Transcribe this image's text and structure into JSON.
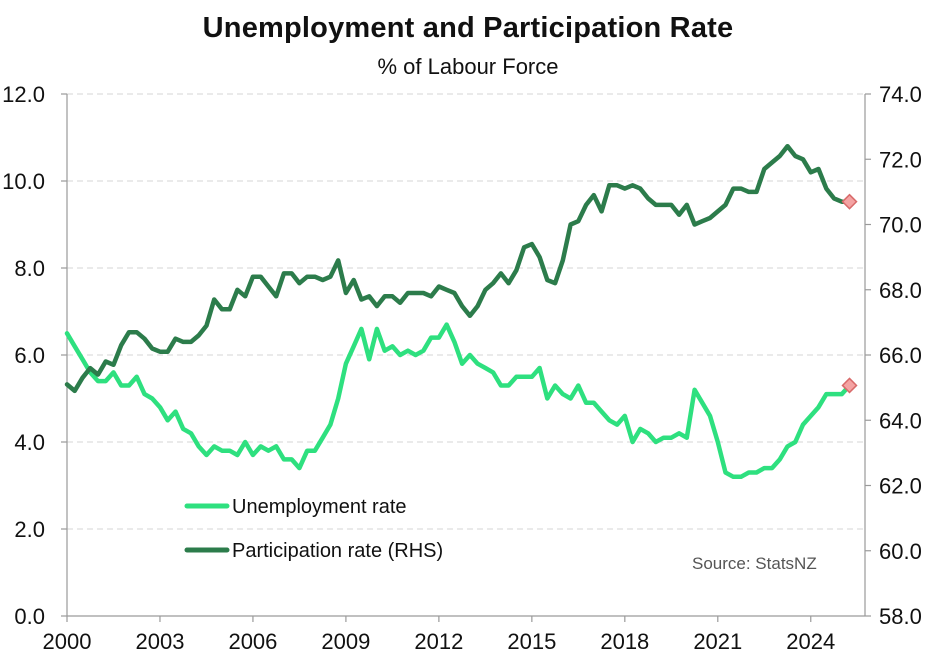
{
  "chart_data": {
    "type": "line",
    "title": "Unemployment and Participation Rate",
    "subtitle": "% of Labour Force",
    "source": "Source: StatsNZ",
    "x_ticks": [
      "2000",
      "2003",
      "2006",
      "2009",
      "2012",
      "2015",
      "2018",
      "2021",
      "2024"
    ],
    "xlim": [
      2000,
      2025.75
    ],
    "y_left": {
      "ylim": [
        0,
        12
      ],
      "ticks": [
        "0.0",
        "2.0",
        "4.0",
        "6.0",
        "8.0",
        "10.0",
        "12.0"
      ]
    },
    "y_right": {
      "ylim": [
        58,
        74
      ],
      "ticks": [
        "58.0",
        "60.0",
        "62.0",
        "64.0",
        "66.0",
        "68.0",
        "70.0",
        "72.0",
        "74.0"
      ]
    },
    "grid": "horizontal dashed",
    "legend_position": "bottom-left",
    "series": [
      {
        "name": "Unemployment rate",
        "axis": "left",
        "color": "#2ee07f",
        "x": [
          2000.0,
          2000.25,
          2000.5,
          2000.75,
          2001.0,
          2001.25,
          2001.5,
          2001.75,
          2002.0,
          2002.25,
          2002.5,
          2002.75,
          2003.0,
          2003.25,
          2003.5,
          2003.75,
          2004.0,
          2004.25,
          2004.5,
          2004.75,
          2005.0,
          2005.25,
          2005.5,
          2005.75,
          2006.0,
          2006.25,
          2006.5,
          2006.75,
          2007.0,
          2007.25,
          2007.5,
          2007.75,
          2008.0,
          2008.25,
          2008.5,
          2008.75,
          2009.0,
          2009.25,
          2009.5,
          2009.75,
          2010.0,
          2010.25,
          2010.5,
          2010.75,
          2011.0,
          2011.25,
          2011.5,
          2011.75,
          2012.0,
          2012.25,
          2012.5,
          2012.75,
          2013.0,
          2013.25,
          2013.5,
          2013.75,
          2014.0,
          2014.25,
          2014.5,
          2014.75,
          2015.0,
          2015.25,
          2015.5,
          2015.75,
          2016.0,
          2016.25,
          2016.5,
          2016.75,
          2017.0,
          2017.25,
          2017.5,
          2017.75,
          2018.0,
          2018.25,
          2018.5,
          2018.75,
          2019.0,
          2019.25,
          2019.5,
          2019.75,
          2020.0,
          2020.25,
          2020.5,
          2020.75,
          2021.0,
          2021.25,
          2021.5,
          2021.75,
          2022.0,
          2022.25,
          2022.5,
          2022.75,
          2023.0,
          2023.25,
          2023.5,
          2023.75,
          2024.0,
          2024.25,
          2024.5,
          2024.75,
          2025.0,
          2025.25
        ],
        "values": [
          6.5,
          6.2,
          5.9,
          5.6,
          5.4,
          5.4,
          5.6,
          5.3,
          5.3,
          5.5,
          5.1,
          5.0,
          4.8,
          4.5,
          4.7,
          4.3,
          4.2,
          3.9,
          3.7,
          3.9,
          3.8,
          3.8,
          3.7,
          4.0,
          3.7,
          3.9,
          3.8,
          3.9,
          3.6,
          3.6,
          3.4,
          3.8,
          3.8,
          4.1,
          4.4,
          5.0,
          5.8,
          6.2,
          6.6,
          5.9,
          6.6,
          6.1,
          6.2,
          6.0,
          6.1,
          6.0,
          6.1,
          6.4,
          6.4,
          6.7,
          6.3,
          5.8,
          6.0,
          5.8,
          5.7,
          5.6,
          5.3,
          5.3,
          5.5,
          5.5,
          5.5,
          5.7,
          5.0,
          5.3,
          5.1,
          5.0,
          5.3,
          4.9,
          4.9,
          4.7,
          4.5,
          4.4,
          4.6,
          4.0,
          4.3,
          4.2,
          4.0,
          4.1,
          4.1,
          4.2,
          4.1,
          5.2,
          4.9,
          4.6,
          4.0,
          3.3,
          3.2,
          3.2,
          3.3,
          3.3,
          3.4,
          3.4,
          3.6,
          3.9,
          4.0,
          4.4,
          4.6,
          4.8,
          5.1,
          5.1,
          5.1,
          5.3
        ],
        "latest_marker": {
          "x": 2025.25,
          "value": 5.3
        }
      },
      {
        "name": "Participation rate (RHS)",
        "axis": "right",
        "color": "#2c7c4b",
        "x": [
          2000.0,
          2000.25,
          2000.5,
          2000.75,
          2001.0,
          2001.25,
          2001.5,
          2001.75,
          2002.0,
          2002.25,
          2002.5,
          2002.75,
          2003.0,
          2003.25,
          2003.5,
          2003.75,
          2004.0,
          2004.25,
          2004.5,
          2004.75,
          2005.0,
          2005.25,
          2005.5,
          2005.75,
          2006.0,
          2006.25,
          2006.5,
          2006.75,
          2007.0,
          2007.25,
          2007.5,
          2007.75,
          2008.0,
          2008.25,
          2008.5,
          2008.75,
          2009.0,
          2009.25,
          2009.5,
          2009.75,
          2010.0,
          2010.25,
          2010.5,
          2010.75,
          2011.0,
          2011.25,
          2011.5,
          2011.75,
          2012.0,
          2012.25,
          2012.5,
          2012.75,
          2013.0,
          2013.25,
          2013.5,
          2013.75,
          2014.0,
          2014.25,
          2014.5,
          2014.75,
          2015.0,
          2015.25,
          2015.5,
          2015.75,
          2016.0,
          2016.25,
          2016.5,
          2016.75,
          2017.0,
          2017.25,
          2017.5,
          2017.75,
          2018.0,
          2018.25,
          2018.5,
          2018.75,
          2019.0,
          2019.25,
          2019.5,
          2019.75,
          2020.0,
          2020.25,
          2020.5,
          2020.75,
          2021.0,
          2021.25,
          2021.5,
          2021.75,
          2022.0,
          2022.25,
          2022.5,
          2022.75,
          2023.0,
          2023.25,
          2023.5,
          2023.75,
          2024.0,
          2024.25,
          2024.5,
          2024.75,
          2025.0,
          2025.25
        ],
        "values": [
          65.1,
          64.9,
          65.3,
          65.6,
          65.4,
          65.8,
          65.7,
          66.3,
          66.7,
          66.7,
          66.5,
          66.2,
          66.1,
          66.1,
          66.5,
          66.4,
          66.4,
          66.6,
          66.9,
          67.7,
          67.4,
          67.4,
          68.0,
          67.8,
          68.4,
          68.4,
          68.1,
          67.8,
          68.5,
          68.5,
          68.2,
          68.4,
          68.4,
          68.3,
          68.4,
          68.9,
          67.9,
          68.3,
          67.7,
          67.8,
          67.5,
          67.8,
          67.8,
          67.6,
          67.9,
          67.9,
          67.9,
          67.8,
          68.1,
          68.0,
          67.9,
          67.5,
          67.2,
          67.5,
          68.0,
          68.2,
          68.5,
          68.2,
          68.6,
          69.3,
          69.4,
          69.0,
          68.3,
          68.2,
          68.9,
          70.0,
          70.1,
          70.6,
          70.9,
          70.4,
          71.2,
          71.2,
          71.1,
          71.2,
          71.1,
          70.8,
          70.6,
          70.6,
          70.6,
          70.3,
          70.6,
          70.0,
          70.1,
          70.2,
          70.4,
          70.6,
          71.1,
          71.1,
          71.0,
          71.0,
          71.7,
          71.9,
          72.1,
          72.4,
          72.1,
          72.0,
          71.6,
          71.7,
          71.1,
          70.8,
          70.7,
          70.7
        ],
        "latest_marker": {
          "x": 2025.25,
          "value": 70.7
        }
      }
    ]
  }
}
